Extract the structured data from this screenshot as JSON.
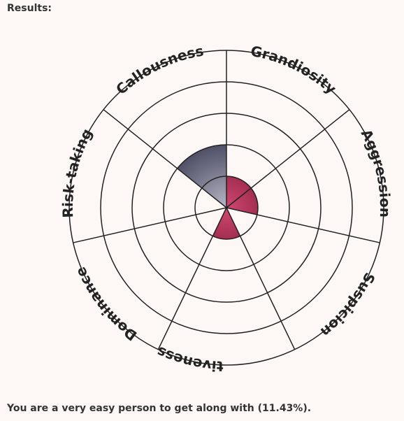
{
  "heading": "Results:",
  "summary": "You are a very easy person to get along with (11.43%).",
  "chart_data": {
    "type": "radial-sector",
    "categories": [
      "Grandiosity",
      "Aggression",
      "Suspicion",
      "Manipulativeness",
      "Dominance",
      "Risk-taking",
      "Callousness"
    ],
    "values": [
      1,
      1,
      0,
      1,
      0,
      0,
      2
    ],
    "max_level": 5,
    "colors": {
      "low": "#8c2040",
      "high": "#4f4f66",
      "grid": "#222222"
    }
  }
}
